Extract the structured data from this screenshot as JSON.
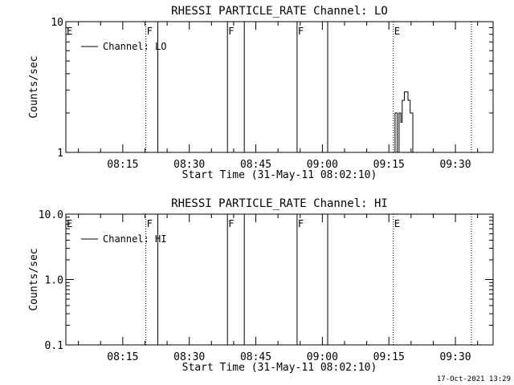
{
  "footer": {
    "timestamp": "17-Oct-2021 13:29"
  },
  "chart_data": [
    {
      "type": "line",
      "title": "RHESSI PARTICLE_RATE Channel: LO",
      "xlabel": "Start Time (31-May-11 08:02:10)",
      "ylabel": "Counts/sec",
      "yscale": "log",
      "ylim": [
        1,
        10
      ],
      "ytick_labels": [
        "1",
        "10"
      ],
      "ytick_values": [
        1,
        10
      ],
      "xlim_minutes": [
        482.17,
        578.5
      ],
      "xtick_labels": [
        "08:15",
        "08:30",
        "08:45",
        "09:00",
        "09:15",
        "09:30"
      ],
      "xtick_values_minutes": [
        495,
        510,
        525,
        540,
        555,
        570
      ],
      "legend": {
        "label": "Channel: LO",
        "placement": "top-left"
      },
      "markers": [
        {
          "label": "E",
          "minute": 482.17,
          "style": "dotted"
        },
        {
          "label": "F",
          "minute": 500.2,
          "style": "dotted"
        },
        {
          "label": "",
          "minute": 502.9,
          "style": "solid"
        },
        {
          "label": "F",
          "minute": 518.6,
          "style": "solid"
        },
        {
          "label": "",
          "minute": 522.4,
          "style": "solid"
        },
        {
          "label": "F",
          "minute": 534.3,
          "style": "solid"
        },
        {
          "label": "",
          "minute": 541.2,
          "style": "solid"
        },
        {
          "label": "E",
          "minute": 556.0,
          "style": "dotted"
        },
        {
          "label": "",
          "minute": 573.6,
          "style": "dotted"
        }
      ],
      "series": [
        {
          "name": "Channel: LO",
          "x_minutes": [
            555.9,
            556.4,
            556.4,
            556.9,
            556.9,
            557.3,
            557.3,
            557.7,
            557.7,
            558.0,
            558.0,
            558.5,
            558.5,
            559.3,
            559.3,
            559.8,
            559.8,
            560.4,
            560.4,
            560.9
          ],
          "y": [
            1,
            1,
            2,
            2,
            1,
            1,
            2,
            2,
            1.7,
            1.7,
            2.5,
            2.5,
            2.9,
            2.9,
            2.5,
            2.5,
            2,
            2,
            1,
            1
          ]
        }
      ]
    },
    {
      "type": "line",
      "title": "RHESSI PARTICLE_RATE Channel: HI",
      "xlabel": "Start Time (31-May-11 08:02:10)",
      "ylabel": "Counts/sec",
      "yscale": "log",
      "ylim": [
        0.1,
        10
      ],
      "ytick_labels": [
        "0.1",
        "1.0",
        "10.0"
      ],
      "ytick_values": [
        0.1,
        1,
        10
      ],
      "xlim_minutes": [
        482.17,
        578.5
      ],
      "xtick_labels": [
        "08:15",
        "08:30",
        "08:45",
        "09:00",
        "09:15",
        "09:30"
      ],
      "xtick_values_minutes": [
        495,
        510,
        525,
        540,
        555,
        570
      ],
      "legend": {
        "label": "Channel: HI",
        "placement": "top-left"
      },
      "markers": [
        {
          "label": "E",
          "minute": 482.17,
          "style": "dotted"
        },
        {
          "label": "F",
          "minute": 500.2,
          "style": "dotted"
        },
        {
          "label": "",
          "minute": 502.9,
          "style": "solid"
        },
        {
          "label": "F",
          "minute": 518.6,
          "style": "solid"
        },
        {
          "label": "",
          "minute": 522.4,
          "style": "solid"
        },
        {
          "label": "F",
          "minute": 534.3,
          "style": "solid"
        },
        {
          "label": "",
          "minute": 541.2,
          "style": "solid"
        },
        {
          "label": "E",
          "minute": 556.0,
          "style": "dotted"
        },
        {
          "label": "",
          "minute": 573.6,
          "style": "dotted"
        }
      ],
      "series": [
        {
          "name": "Channel: HI",
          "x_minutes": [],
          "y": []
        }
      ]
    }
  ]
}
